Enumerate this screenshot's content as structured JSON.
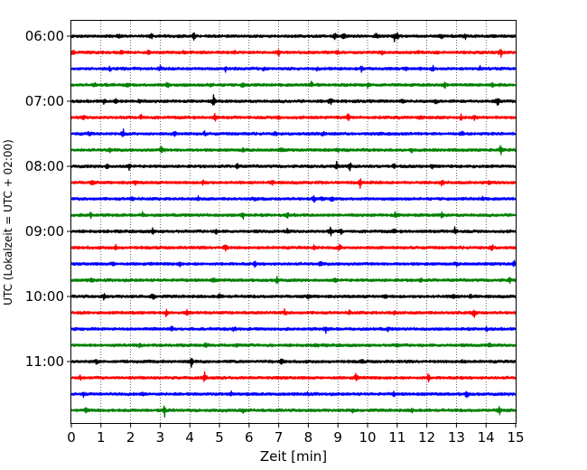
{
  "chart_data": {
    "type": "line",
    "title": "",
    "xlabel": "Zeit  [min]",
    "ylabel": "UTC (Lokalzeit = UTC + 02:00)",
    "xlim": [
      0,
      15
    ],
    "x_ticks": [
      "0",
      "1",
      "2",
      "3",
      "4",
      "5",
      "6",
      "7",
      "8",
      "9",
      "10",
      "11",
      "12",
      "13",
      "14",
      "15"
    ],
    "y_tick_labels": [
      "06:00",
      "07:00",
      "08:00",
      "09:00",
      "10:00",
      "11:00"
    ],
    "grid": "vertical dotted at each minute",
    "row_interval_minutes": 15,
    "color_cycle": [
      "#000000",
      "#ff0000",
      "#0000ff",
      "#008000"
    ],
    "rows": [
      {
        "start": "06:00",
        "color": "#000000",
        "spikes": [
          [
            1.6,
            0.35
          ],
          [
            2.7,
            0.3
          ],
          [
            4.15,
            0.6
          ],
          [
            8.9,
            0.4
          ],
          [
            9.2,
            0.55
          ],
          [
            10.3,
            0.35
          ],
          [
            10.9,
            0.7
          ],
          [
            11.0,
            0.55
          ],
          [
            12.5,
            0.3
          ],
          [
            13.3,
            0.35
          ]
        ]
      },
      {
        "start": "06:15",
        "color": "#ff0000",
        "spikes": [
          [
            0.05,
            0.4
          ],
          [
            1.7,
            0.3
          ],
          [
            2.6,
            0.3
          ],
          [
            3.8,
            0.35
          ],
          [
            5.5,
            0.3
          ],
          [
            7.0,
            0.6
          ],
          [
            9.0,
            0.3
          ],
          [
            10.5,
            0.35
          ],
          [
            11.7,
            0.3
          ],
          [
            14.5,
            0.85
          ]
        ]
      },
      {
        "start": "06:30",
        "color": "#0000ff",
        "spikes": [
          [
            1.3,
            0.3
          ],
          [
            3.0,
            0.3
          ],
          [
            5.2,
            0.45
          ],
          [
            6.5,
            0.3
          ],
          [
            8.3,
            0.3
          ],
          [
            9.8,
            0.45
          ],
          [
            11.3,
            0.3
          ],
          [
            12.2,
            0.4
          ],
          [
            13.8,
            0.3
          ]
        ]
      },
      {
        "start": "06:45",
        "color": "#008000",
        "spikes": [
          [
            0.8,
            0.3
          ],
          [
            1.9,
            0.3
          ],
          [
            3.25,
            0.55
          ],
          [
            4.7,
            0.3
          ],
          [
            5.8,
            0.35
          ],
          [
            8.1,
            0.45
          ],
          [
            10.0,
            0.3
          ],
          [
            12.6,
            0.55
          ],
          [
            14.2,
            0.3
          ]
        ]
      },
      {
        "start": "07:00",
        "color": "#000000",
        "spikes": [
          [
            1.1,
            0.35
          ],
          [
            1.5,
            0.4
          ],
          [
            2.3,
            0.3
          ],
          [
            4.8,
            0.75
          ],
          [
            8.75,
            0.7
          ],
          [
            11.2,
            0.3
          ],
          [
            12.3,
            0.3
          ],
          [
            14.4,
            0.7
          ]
        ]
      },
      {
        "start": "07:15",
        "color": "#ff0000",
        "spikes": [
          [
            0.4,
            0.3
          ],
          [
            2.35,
            0.55
          ],
          [
            4.85,
            0.5
          ],
          [
            7.0,
            0.3
          ],
          [
            9.35,
            0.65
          ],
          [
            11.8,
            0.3
          ],
          [
            13.15,
            0.45
          ],
          [
            13.6,
            0.35
          ]
        ]
      },
      {
        "start": "07:30",
        "color": "#0000ff",
        "spikes": [
          [
            0.6,
            0.35
          ],
          [
            1.75,
            0.65
          ],
          [
            3.5,
            0.3
          ],
          [
            4.5,
            0.3
          ],
          [
            6.9,
            0.35
          ],
          [
            8.5,
            0.35
          ],
          [
            10.4,
            0.3
          ],
          [
            13.2,
            0.45
          ]
        ]
      },
      {
        "start": "07:45",
        "color": "#008000",
        "spikes": [
          [
            1.3,
            0.5
          ],
          [
            3.05,
            0.65
          ],
          [
            5.8,
            0.3
          ],
          [
            7.1,
            0.3
          ],
          [
            9.0,
            0.3
          ],
          [
            11.5,
            0.3
          ],
          [
            14.5,
            0.75
          ]
        ]
      },
      {
        "start": "08:00",
        "color": "#000000",
        "spikes": [
          [
            1.2,
            0.4
          ],
          [
            1.95,
            0.4
          ],
          [
            5.6,
            0.45
          ],
          [
            8.95,
            0.75
          ],
          [
            9.4,
            0.75
          ],
          [
            10.9,
            0.4
          ],
          [
            12.2,
            0.3
          ]
        ]
      },
      {
        "start": "08:15",
        "color": "#ff0000",
        "spikes": [
          [
            0.7,
            0.35
          ],
          [
            2.15,
            0.35
          ],
          [
            4.45,
            0.45
          ],
          [
            6.8,
            0.35
          ],
          [
            9.75,
            0.65
          ],
          [
            12.5,
            0.55
          ],
          [
            14.1,
            0.3
          ]
        ]
      },
      {
        "start": "08:30",
        "color": "#0000ff",
        "spikes": [
          [
            2.05,
            0.4
          ],
          [
            4.3,
            0.35
          ],
          [
            6.2,
            0.3
          ],
          [
            8.2,
            0.4
          ],
          [
            8.5,
            0.4
          ],
          [
            8.8,
            0.35
          ],
          [
            13.9,
            0.35
          ]
        ]
      },
      {
        "start": "08:45",
        "color": "#008000",
        "spikes": [
          [
            0.65,
            0.45
          ],
          [
            2.4,
            0.3
          ],
          [
            5.8,
            0.5
          ],
          [
            7.3,
            0.35
          ],
          [
            10.95,
            0.5
          ],
          [
            12.5,
            0.45
          ]
        ]
      },
      {
        "start": "09:00",
        "color": "#000000",
        "spikes": [
          [
            2.75,
            0.45
          ],
          [
            4.9,
            0.3
          ],
          [
            7.3,
            0.35
          ],
          [
            8.75,
            0.75
          ],
          [
            9.1,
            0.45
          ],
          [
            10.9,
            0.35
          ],
          [
            12.95,
            0.6
          ]
        ]
      },
      {
        "start": "09:15",
        "color": "#ff0000",
        "spikes": [
          [
            1.5,
            0.3
          ],
          [
            5.2,
            0.7
          ],
          [
            8.2,
            0.35
          ],
          [
            9.05,
            0.55
          ],
          [
            14.2,
            0.6
          ]
        ]
      },
      {
        "start": "09:30",
        "color": "#0000ff",
        "spikes": [
          [
            1.4,
            0.35
          ],
          [
            3.65,
            0.35
          ],
          [
            6.2,
            0.35
          ],
          [
            8.4,
            0.45
          ],
          [
            13.0,
            0.3
          ],
          [
            14.95,
            0.55
          ]
        ]
      },
      {
        "start": "09:45",
        "color": "#008000",
        "spikes": [
          [
            0.7,
            0.3
          ],
          [
            4.8,
            0.3
          ],
          [
            6.95,
            0.55
          ],
          [
            8.9,
            0.35
          ],
          [
            11.8,
            0.3
          ],
          [
            14.8,
            0.4
          ]
        ]
      },
      {
        "start": "10:00",
        "color": "#000000",
        "spikes": [
          [
            1.1,
            0.4
          ],
          [
            2.75,
            0.65
          ],
          [
            5.0,
            0.35
          ],
          [
            8.0,
            0.35
          ],
          [
            10.6,
            0.3
          ],
          [
            12.9,
            0.5
          ],
          [
            13.5,
            0.35
          ]
        ]
      },
      {
        "start": "10:15",
        "color": "#ff0000",
        "spikes": [
          [
            3.2,
            0.55
          ],
          [
            3.9,
            0.3
          ],
          [
            7.2,
            0.4
          ],
          [
            9.4,
            0.3
          ],
          [
            10.9,
            0.3
          ],
          [
            13.6,
            0.8
          ]
        ]
      },
      {
        "start": "10:30",
        "color": "#0000ff",
        "spikes": [
          [
            3.4,
            0.45
          ],
          [
            5.5,
            0.35
          ],
          [
            8.6,
            0.5
          ],
          [
            10.7,
            0.3
          ],
          [
            14.0,
            0.4
          ]
        ]
      },
      {
        "start": "10:45",
        "color": "#008000",
        "spikes": [
          [
            2.3,
            0.35
          ],
          [
            4.55,
            0.4
          ],
          [
            5.6,
            0.3
          ],
          [
            8.3,
            0.3
          ],
          [
            11.0,
            0.3
          ],
          [
            14.1,
            0.35
          ]
        ]
      },
      {
        "start": "11:00",
        "color": "#000000",
        "spikes": [
          [
            0.85,
            0.35
          ],
          [
            4.05,
            0.75
          ],
          [
            7.1,
            0.5
          ],
          [
            9.8,
            0.3
          ],
          [
            13.2,
            0.3
          ]
        ]
      },
      {
        "start": "11:15",
        "color": "#ff0000",
        "spikes": [
          [
            0.3,
            0.3
          ],
          [
            4.5,
            0.75
          ],
          [
            9.6,
            0.55
          ],
          [
            12.05,
            0.6
          ]
        ]
      },
      {
        "start": "11:30",
        "color": "#0000ff",
        "spikes": [
          [
            0.4,
            0.3
          ],
          [
            2.4,
            0.35
          ],
          [
            5.4,
            0.3
          ],
          [
            8.0,
            0.3
          ],
          [
            10.9,
            0.3
          ],
          [
            13.35,
            0.6
          ]
        ]
      },
      {
        "start": "11:45",
        "color": "#008000",
        "spikes": [
          [
            0.5,
            0.55
          ],
          [
            3.15,
            0.85
          ],
          [
            5.8,
            0.3
          ],
          [
            9.5,
            0.4
          ],
          [
            11.5,
            0.3
          ],
          [
            14.45,
            0.85
          ]
        ]
      }
    ]
  }
}
